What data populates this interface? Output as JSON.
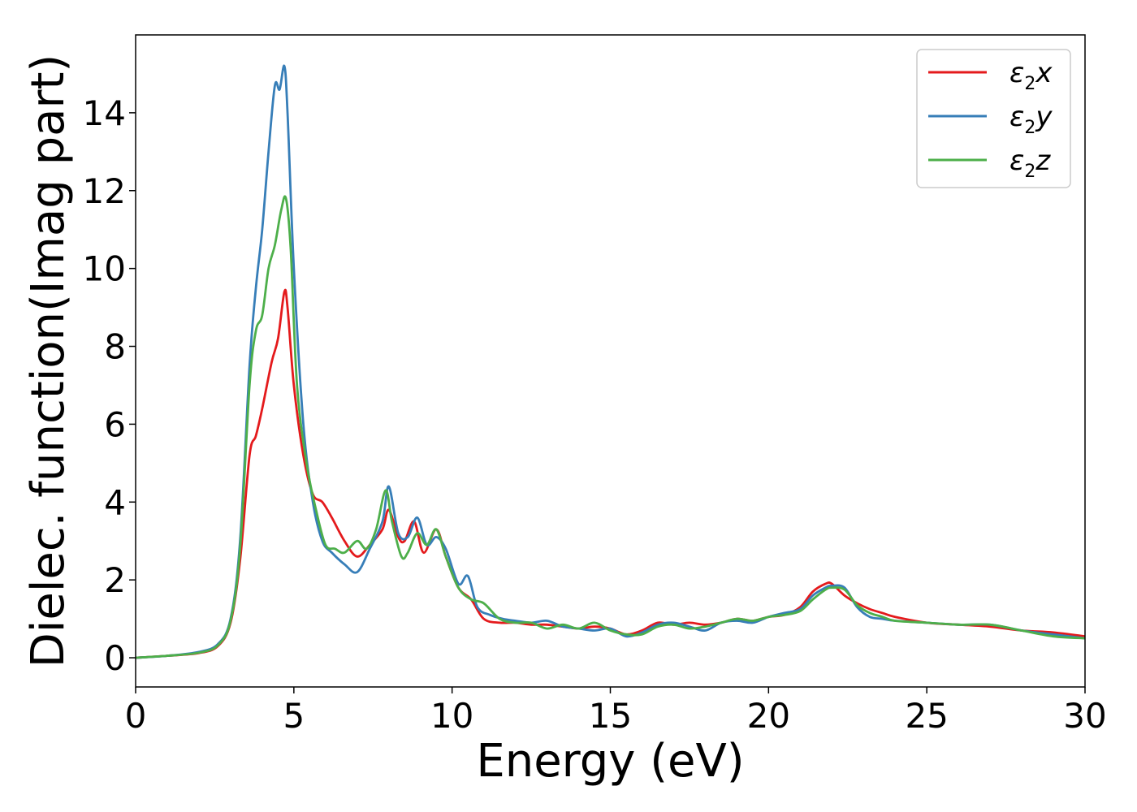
{
  "chart_data": {
    "type": "line",
    "title": "",
    "xlabel": "Energy (eV)",
    "ylabel": "Dielec. function(Imag part)",
    "xlim": [
      0,
      30
    ],
    "ylim": [
      -0.75,
      16.0
    ],
    "xticks": [
      0,
      5,
      10,
      15,
      20,
      25,
      30
    ],
    "yticks": [
      0,
      2,
      4,
      6,
      8,
      10,
      12,
      14
    ],
    "grid": false,
    "legend_position": "top-right",
    "series": [
      {
        "name": "ε2x",
        "legend": {
          "base": "ε",
          "sub": "2",
          "axis": "x"
        },
        "color": "#e41a1c",
        "x": [
          0,
          1,
          2,
          2.6,
          3.0,
          3.3,
          3.6,
          3.8,
          4.0,
          4.3,
          4.5,
          4.7,
          4.8,
          5.0,
          5.3,
          5.6,
          5.9,
          6.2,
          6.6,
          7.0,
          7.4,
          7.8,
          8.0,
          8.3,
          8.5,
          8.8,
          9.1,
          9.5,
          9.8,
          10.2,
          10.6,
          11.0,
          11.5,
          12.0,
          12.5,
          13.0,
          13.5,
          14.0,
          14.5,
          15.0,
          15.5,
          16.0,
          16.5,
          17.0,
          17.5,
          18.0,
          18.5,
          19.0,
          19.5,
          20.0,
          20.5,
          21.0,
          21.4,
          21.8,
          22.0,
          22.4,
          22.8,
          23.2,
          23.6,
          24.0,
          25.0,
          26.0,
          27.0,
          28.0,
          29.0,
          30.0
        ],
        "y": [
          0,
          0.05,
          0.12,
          0.3,
          0.9,
          2.5,
          5.2,
          5.7,
          6.4,
          7.6,
          8.2,
          9.4,
          9.0,
          7.0,
          5.2,
          4.2,
          4.0,
          3.6,
          3.0,
          2.6,
          2.9,
          3.3,
          3.8,
          3.1,
          3.0,
          3.5,
          2.7,
          3.3,
          2.6,
          1.8,
          1.5,
          1.0,
          0.9,
          0.9,
          0.85,
          0.85,
          0.8,
          0.75,
          0.8,
          0.75,
          0.6,
          0.7,
          0.9,
          0.85,
          0.9,
          0.85,
          0.9,
          1.0,
          0.95,
          1.05,
          1.1,
          1.3,
          1.7,
          1.9,
          1.9,
          1.6,
          1.4,
          1.25,
          1.15,
          1.05,
          0.9,
          0.85,
          0.8,
          0.7,
          0.65,
          0.55
        ]
      },
      {
        "name": "ε2y",
        "legend": {
          "base": "ε",
          "sub": "2",
          "axis": "y"
        },
        "color": "#377eb8",
        "x": [
          0,
          1,
          2,
          2.6,
          3.0,
          3.3,
          3.6,
          3.8,
          4.0,
          4.2,
          4.4,
          4.55,
          4.7,
          4.8,
          5.0,
          5.3,
          5.6,
          5.9,
          6.2,
          6.6,
          7.0,
          7.4,
          7.8,
          8.0,
          8.3,
          8.6,
          8.9,
          9.2,
          9.5,
          9.8,
          10.2,
          10.5,
          10.8,
          11.2,
          11.6,
          12.0,
          12.5,
          13.0,
          13.5,
          14.0,
          14.5,
          15.0,
          15.5,
          16.0,
          16.5,
          17.0,
          17.5,
          18.0,
          18.5,
          19.0,
          19.5,
          20.0,
          20.5,
          21.0,
          21.4,
          21.8,
          22.0,
          22.4,
          22.8,
          23.2,
          23.6,
          24.0,
          25.0,
          26.0,
          27.0,
          28.0,
          29.0,
          30.0
        ],
        "y": [
          0,
          0.05,
          0.15,
          0.35,
          1.0,
          3.0,
          7.5,
          9.5,
          11.0,
          13.0,
          14.7,
          14.6,
          15.2,
          14.0,
          10.0,
          6.0,
          4.0,
          3.0,
          2.7,
          2.4,
          2.2,
          2.8,
          3.5,
          4.4,
          3.2,
          3.1,
          3.6,
          2.9,
          3.1,
          2.8,
          1.9,
          2.1,
          1.3,
          1.1,
          1.0,
          0.95,
          0.9,
          0.95,
          0.8,
          0.75,
          0.7,
          0.75,
          0.55,
          0.65,
          0.85,
          0.9,
          0.8,
          0.7,
          0.9,
          0.95,
          0.9,
          1.05,
          1.15,
          1.25,
          1.6,
          1.8,
          1.85,
          1.8,
          1.3,
          1.05,
          1.0,
          0.95,
          0.9,
          0.85,
          0.85,
          0.7,
          0.6,
          0.5
        ]
      },
      {
        "name": "ε2z",
        "legend": {
          "base": "ε",
          "sub": "2",
          "axis": "z"
        },
        "color": "#4daf4a",
        "x": [
          0,
          1,
          2,
          2.6,
          3.0,
          3.3,
          3.6,
          3.8,
          4.0,
          4.2,
          4.4,
          4.6,
          4.75,
          4.9,
          5.1,
          5.4,
          5.7,
          6.0,
          6.3,
          6.6,
          7.0,
          7.3,
          7.6,
          7.9,
          8.1,
          8.4,
          8.6,
          8.9,
          9.2,
          9.5,
          9.8,
          10.2,
          10.6,
          11.0,
          11.5,
          12.0,
          12.5,
          13.0,
          13.5,
          14.0,
          14.5,
          15.0,
          15.5,
          16.0,
          16.5,
          17.0,
          17.5,
          18.0,
          18.5,
          19.0,
          19.5,
          20.0,
          20.5,
          21.0,
          21.4,
          21.8,
          22.0,
          22.4,
          22.8,
          23.2,
          23.6,
          24.0,
          25.0,
          26.0,
          27.0,
          28.0,
          29.0,
          30.0
        ],
        "y": [
          0,
          0.05,
          0.13,
          0.32,
          0.95,
          2.8,
          7.0,
          8.4,
          8.8,
          10.0,
          10.6,
          11.5,
          11.8,
          10.5,
          7.0,
          5.0,
          3.8,
          2.9,
          2.8,
          2.7,
          3.0,
          2.8,
          3.3,
          4.3,
          3.5,
          2.6,
          2.7,
          3.2,
          2.9,
          3.3,
          2.6,
          1.8,
          1.5,
          1.4,
          1.0,
          0.9,
          0.9,
          0.75,
          0.85,
          0.75,
          0.9,
          0.7,
          0.6,
          0.6,
          0.8,
          0.85,
          0.75,
          0.8,
          0.9,
          1.0,
          0.95,
          1.05,
          1.1,
          1.2,
          1.5,
          1.75,
          1.8,
          1.75,
          1.35,
          1.15,
          1.05,
          0.95,
          0.9,
          0.85,
          0.85,
          0.7,
          0.55,
          0.5
        ]
      }
    ]
  }
}
